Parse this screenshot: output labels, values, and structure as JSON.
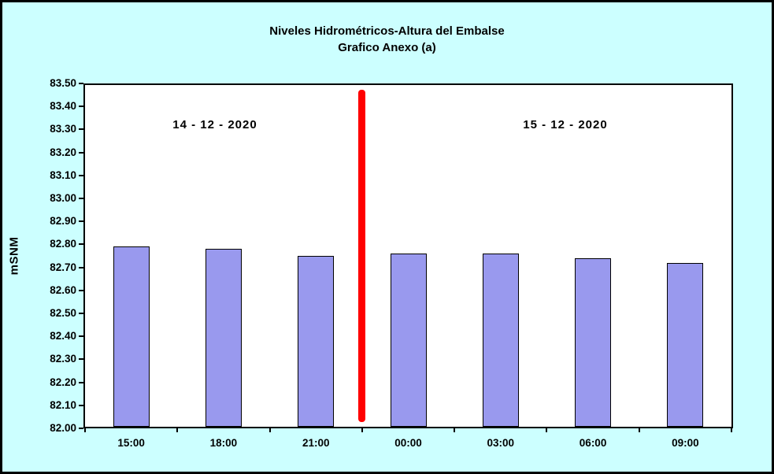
{
  "chart_data": {
    "type": "bar",
    "title": "Niveles Hidrométricos-Altura del Embalse",
    "subtitle": "Grafico Anexo (a)",
    "ylabel": "mSNM",
    "xlabel": "",
    "categories": [
      "15:00",
      "18:00",
      "21:00",
      "00:00",
      "03:00",
      "06:00",
      "09:00"
    ],
    "values": [
      82.79,
      82.78,
      82.75,
      82.76,
      82.76,
      82.74,
      82.72
    ],
    "ylim": [
      82.0,
      83.5
    ],
    "ytick_step": 0.1,
    "ytick_labels": [
      "83.50",
      "83.40",
      "83.30",
      "83.20",
      "83.10",
      "83.00",
      "82.90",
      "82.80",
      "82.70",
      "82.60",
      "82.50",
      "82.40",
      "82.30",
      "82.20",
      "82.10",
      "82.00"
    ],
    "grid": false,
    "legend": false,
    "background_color": "#CCFFFF",
    "plot_background_color": "#FFFFFF",
    "bar_color": "#9999EE",
    "bar_border_color": "#000000",
    "annotations": [
      {
        "text": "14 - 12 - 2020",
        "position": "left"
      },
      {
        "text": "15 - 12 - 2020",
        "position": "right"
      }
    ],
    "divider": {
      "color": "#FF0000",
      "after_category": "21:00"
    }
  }
}
